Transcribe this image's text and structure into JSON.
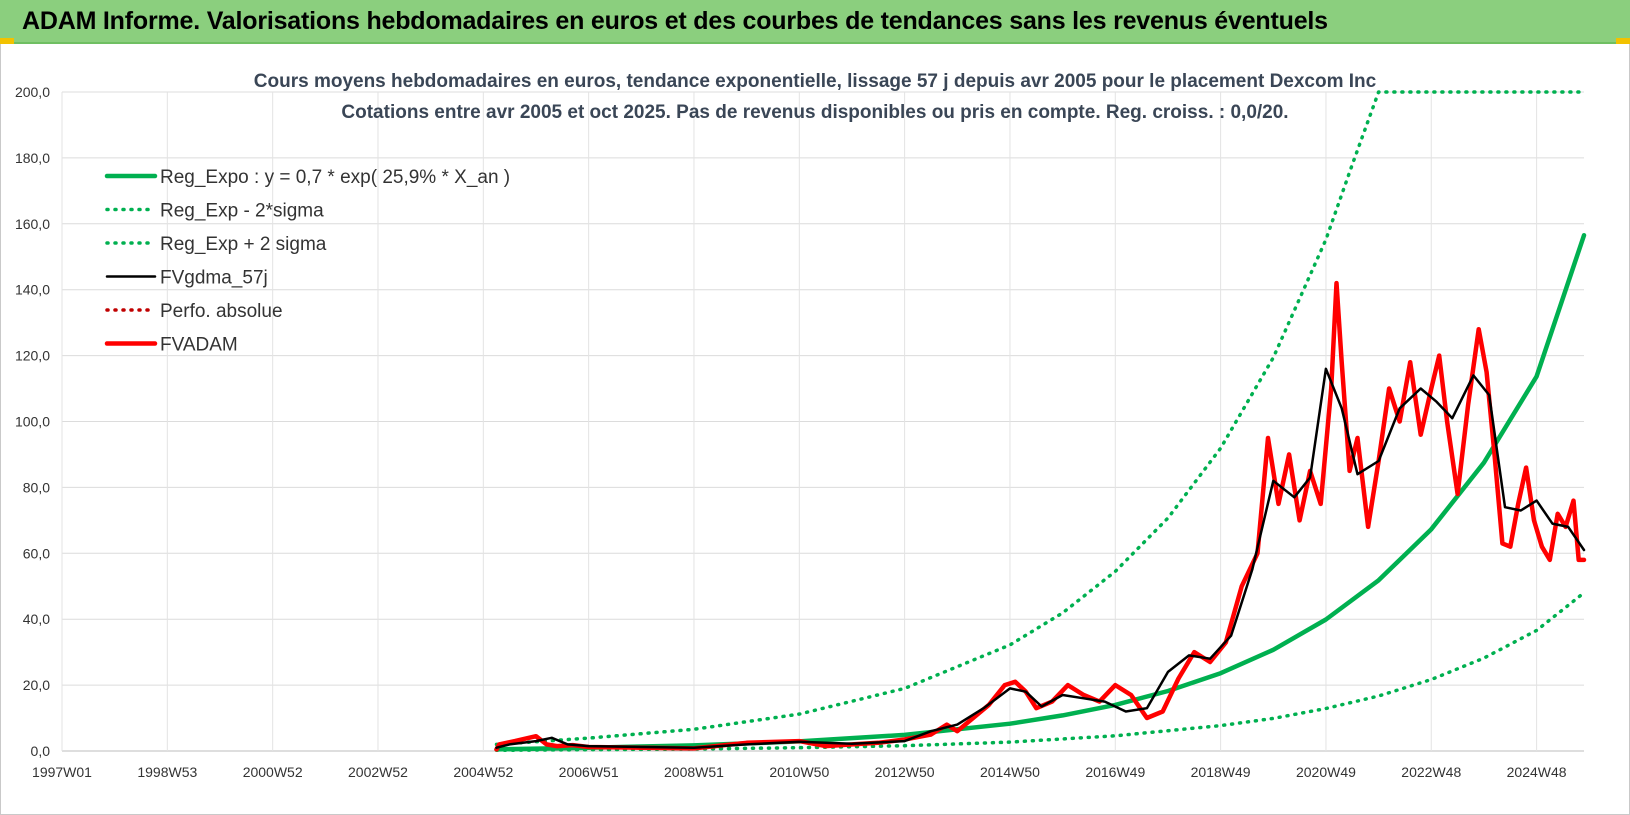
{
  "banner": {
    "title": "ADAM Informe. Valorisations hebdomadaires en euros et des courbes de tendances sans les revenus éventuels"
  },
  "colors": {
    "banner": "#8bcf7e",
    "green": "#00b050",
    "red": "#ff0000",
    "black": "#000000",
    "darkred": "#c00000"
  },
  "chart_data": {
    "type": "line",
    "title_line1": "Cours moyens hebdomadaires en euros, tendance exponentielle, lissage 57 j depuis avr 2005 pour le placement Dexcom Inc",
    "title_line2": "Cotations entre avr 2005 et oct 2025. Pas de revenus disponibles ou pris en compte. Reg. croiss. : 0,0/20.",
    "ylim": [
      0,
      200
    ],
    "grid": true,
    "legend_position": "top-left",
    "y_ticks": [
      "0,0",
      "20,0",
      "40,0",
      "60,0",
      "80,0",
      "100,0",
      "120,0",
      "140,0",
      "160,0",
      "180,0",
      "200,0"
    ],
    "x_ticks": [
      "1997W01",
      "1998W53",
      "2000W52",
      "2002W52",
      "2004W52",
      "2006W51",
      "2008W51",
      "2010W50",
      "2012W50",
      "2014W50",
      "2016W49",
      "2018W49",
      "2020W49",
      "2022W48",
      "2024W48"
    ],
    "x_tick_years": [
      1997.0,
      1999.0,
      2001.0,
      2003.0,
      2005.0,
      2007.0,
      2009.0,
      2011.0,
      2013.0,
      2015.0,
      2017.0,
      2019.0,
      2021.0,
      2023.0,
      2025.0
    ],
    "x_range": [
      1997.0,
      2025.9
    ],
    "series": [
      {
        "name": "Reg_Expo : y = 0,7 * exp( 25,9% *  X_an )",
        "style": "solid-thick",
        "color": "#00b050",
        "x": [
          2005.25,
          2007,
          2009,
          2011,
          2013,
          2015,
          2016,
          2017,
          2018,
          2019,
          2020,
          2021,
          2022,
          2023,
          2024,
          2025,
          2025.9
        ],
        "y": [
          0.5,
          1.0,
          1.7,
          2.9,
          4.9,
          8.3,
          10.8,
          14.0,
          18.2,
          23.6,
          30.7,
          39.9,
          51.8,
          67.3,
          87.5,
          113.7,
          156.5
        ]
      },
      {
        "name": "Reg_Exp - 2*sigma",
        "style": "dotted",
        "color": "#00b050",
        "x": [
          2005.25,
          2007,
          2009,
          2011,
          2013,
          2015,
          2017,
          2019,
          2020,
          2021,
          2022,
          2023,
          2024,
          2025,
          2025.9
        ],
        "y": [
          0.2,
          0.4,
          0.6,
          1.0,
          1.6,
          2.7,
          4.6,
          7.7,
          9.9,
          12.9,
          16.7,
          21.7,
          28.2,
          36.6,
          48.0
        ]
      },
      {
        "name": "Reg_Exp + 2 sigma",
        "style": "dotted",
        "color": "#00b050",
        "x": [
          2005.25,
          2007,
          2009,
          2011,
          2013,
          2015,
          2016,
          2017,
          2018,
          2019,
          2020,
          2021,
          2021.5,
          2022,
          2025.9
        ],
        "y": [
          2.0,
          3.9,
          6.6,
          11.2,
          19.0,
          32.2,
          41.9,
          54.5,
          70.7,
          91.9,
          119.4,
          155.2,
          178.0,
          200.0,
          200.0
        ]
      },
      {
        "name": "FVgdma_57j",
        "style": "solid",
        "color": "#000000",
        "x": [
          2005.25,
          2005.5,
          2006,
          2006.3,
          2006.6,
          2007,
          2008,
          2009,
          2010,
          2011,
          2012,
          2013,
          2013.5,
          2014,
          2014.5,
          2015,
          2015.3,
          2015.6,
          2016,
          2016.4,
          2016.8,
          2017.2,
          2017.6,
          2018.0,
          2018.4,
          2018.8,
          2019.2,
          2019.6,
          2020.0,
          2020.4,
          2020.7,
          2021.0,
          2021.3,
          2021.6,
          2022.0,
          2022.4,
          2022.8,
          2023.1,
          2023.4,
          2023.8,
          2024.1,
          2024.4,
          2024.7,
          2025.0,
          2025.3,
          2025.6,
          2025.9
        ],
        "y": [
          1.0,
          2.0,
          3.0,
          4.0,
          2.0,
          1.5,
          1.2,
          1.0,
          2.0,
          2.8,
          2.2,
          3.0,
          6.0,
          8.0,
          13.0,
          19.0,
          18.0,
          13.5,
          17.0,
          16.0,
          15.0,
          12.0,
          13.0,
          24.0,
          29.0,
          28.0,
          35.0,
          55.0,
          82.0,
          77.0,
          83.0,
          116.0,
          104.0,
          84.0,
          88.0,
          104.0,
          110.0,
          106.0,
          101.0,
          114.0,
          108.0,
          74.0,
          73.0,
          76.0,
          69.0,
          68.0,
          61.0
        ]
      },
      {
        "name": "Perfo. absolue",
        "style": "dotted",
        "color": "#c00000",
        "x": [],
        "y": []
      },
      {
        "name": "FVADAM",
        "style": "solid-thick",
        "color": "#ff0000",
        "x": [
          2005.25,
          2005.3,
          2005.6,
          2006.0,
          2006.2,
          2006.4,
          2006.7,
          2007.0,
          2008.0,
          2009.0,
          2010.0,
          2011.0,
          2011.5,
          2012.0,
          2012.5,
          2013.0,
          2013.5,
          2013.8,
          2014.0,
          2014.3,
          2014.6,
          2014.9,
          2015.1,
          2015.3,
          2015.5,
          2015.8,
          2016.1,
          2016.4,
          2016.7,
          2017.0,
          2017.3,
          2017.6,
          2017.9,
          2018.2,
          2018.5,
          2018.8,
          2019.1,
          2019.4,
          2019.7,
          2019.9,
          2020.1,
          2020.3,
          2020.5,
          2020.7,
          2020.9,
          2021.1,
          2021.2,
          2021.3,
          2021.45,
          2021.6,
          2021.8,
          2022.0,
          2022.2,
          2022.4,
          2022.6,
          2022.8,
          2023.0,
          2023.15,
          2023.3,
          2023.5,
          2023.7,
          2023.9,
          2024.05,
          2024.2,
          2024.35,
          2024.5,
          2024.65,
          2024.8,
          2024.95,
          2025.1,
          2025.25,
          2025.4,
          2025.55,
          2025.7,
          2025.8,
          2025.9
        ],
        "y": [
          0.5,
          2.0,
          3.0,
          4.5,
          2.0,
          1.5,
          1.8,
          1.2,
          1.0,
          0.8,
          2.5,
          3.0,
          1.5,
          2.0,
          2.5,
          3.5,
          5.0,
          8.0,
          6.0,
          10.0,
          14.0,
          20.0,
          21.0,
          18.0,
          13.0,
          15.0,
          20.0,
          17.0,
          15.0,
          20.0,
          17.0,
          10.0,
          12.0,
          22.0,
          30.0,
          27.0,
          33.0,
          50.0,
          60.0,
          95.0,
          75.0,
          90.0,
          70.0,
          85.0,
          75.0,
          110.0,
          142.0,
          118.0,
          85.0,
          95.0,
          68.0,
          88.0,
          110.0,
          100.0,
          118.0,
          96.0,
          110.0,
          120.0,
          100.0,
          78.0,
          105.0,
          128.0,
          115.0,
          90.0,
          63.0,
          62.0,
          75.0,
          86.0,
          70.0,
          62.0,
          58.0,
          72.0,
          68.0,
          76.0,
          58.0,
          58.0
        ]
      }
    ]
  }
}
